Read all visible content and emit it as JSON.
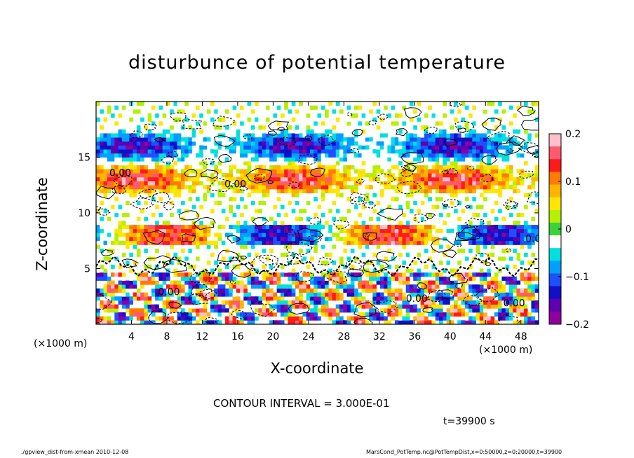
{
  "chart_data": {
    "type": "heatmap",
    "title": "disturbunce of potential temperature",
    "xlabel": "X-coordinate",
    "ylabel": "Z-coordinate",
    "x_unit": "(×1000 m)",
    "y_unit": "(×1000 m)",
    "xlim": [
      0,
      50
    ],
    "ylim": [
      0,
      20
    ],
    "xticks": [
      "4",
      "8",
      "12",
      "16",
      "20",
      "24",
      "28",
      "32",
      "36",
      "40",
      "44",
      "48"
    ],
    "yticks": [
      "5",
      "10",
      "15"
    ],
    "colorbar": {
      "range": [
        -0.2,
        0.2
      ],
      "ticks": [
        "0.2",
        "0.1",
        "0",
        "−0.1",
        "−0.2"
      ],
      "colors": [
        "#ffc0cb",
        "#ff5a6e",
        "#ff1a1a",
        "#ff7a00",
        "#ffb400",
        "#ffe600",
        "#b4f000",
        "#3cd23c",
        "#ffffff",
        "#00e0e0",
        "#00a0ff",
        "#1e50ff",
        "#1010c8",
        "#6000b0",
        "#9000a0"
      ]
    },
    "contour_labels": [
      "0.00"
    ],
    "contour_interval": "3.000E-01",
    "time": "t=39900 s"
  },
  "footer": {
    "left": "./gpview_dist-from-xmean   2010-12-08",
    "right": "MarsCond_PotTemp.nc@PotTempDist,x=0:50000,z=0:20000,t=39900"
  }
}
